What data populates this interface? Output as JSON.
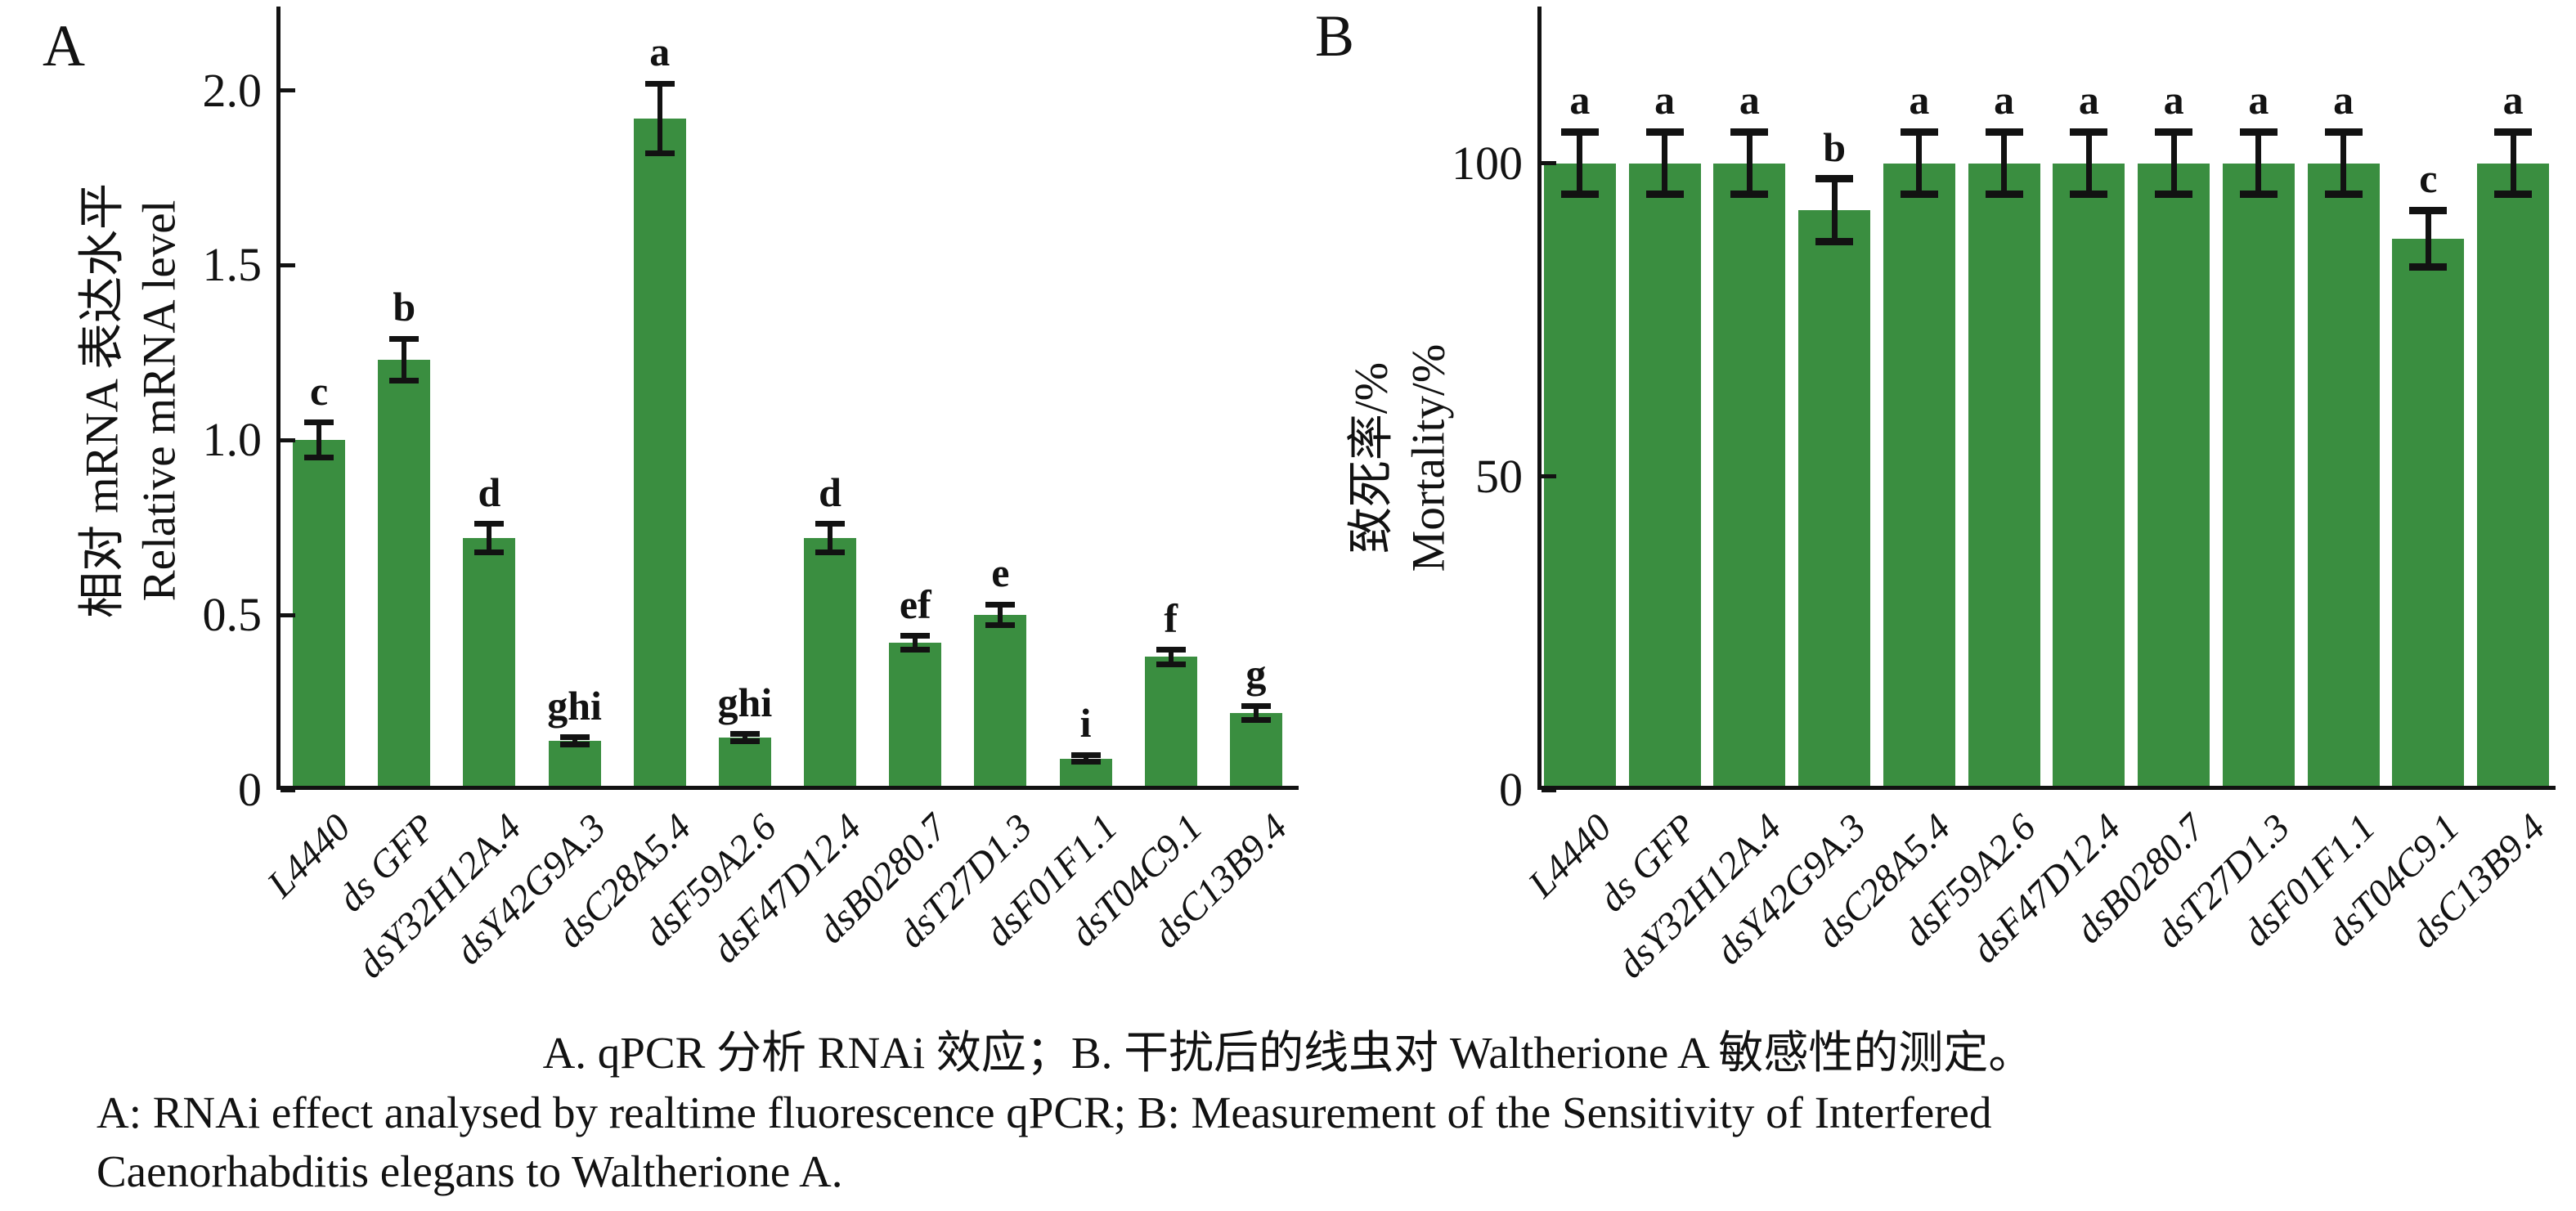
{
  "colors": {
    "bar": "#3a8e40",
    "ink": "#121212",
    "background": "#ffffff"
  },
  "caption": {
    "line1_zh": "A. qPCR 分析 RNAi 效应；B. 干扰后的线虫对 Waltherione A 敏感性的测定。",
    "line2_en": "A: RNAi effect analysed by realtime fluorescence qPCR; B: Measurement of the Sensitivity of Interfered",
    "line3_en": "Caenorhabditis elegans to Waltherione A."
  },
  "chart_data": [
    {
      "type": "bar",
      "panel_label": "A",
      "ylabel_zh": "相对 mRNA 表达水平",
      "ylabel_en": "Relative mRNA level",
      "xlabel": "",
      "categories": [
        "L4440",
        "ds GFP",
        "dsY32H12A.4",
        "dsY42G9A.3",
        "dsC28A5.4",
        "dsF59A2.6",
        "dsF47D12.4",
        "dsB0280.7",
        "dsT27D1.3",
        "dsF01F1.1",
        "dsT04C9.1",
        "dsC13B9.4"
      ],
      "values": [
        1.0,
        1.23,
        0.72,
        0.14,
        1.92,
        0.15,
        0.72,
        0.42,
        0.5,
        0.09,
        0.38,
        0.22
      ],
      "errors": [
        0.05,
        0.06,
        0.04,
        0.01,
        0.1,
        0.01,
        0.04,
        0.02,
        0.03,
        0.01,
        0.02,
        0.02
      ],
      "sig_letters": [
        "c",
        "b",
        "d",
        "ghi",
        "a",
        "ghi",
        "d",
        "ef",
        "e",
        "i",
        "f",
        "g"
      ],
      "ylim": [
        0,
        2.24
      ],
      "yticks": [
        {
          "v": 0,
          "label": "0"
        },
        {
          "v": 0.5,
          "label": "0.5"
        },
        {
          "v": 1.0,
          "label": "1.0"
        },
        {
          "v": 1.5,
          "label": "1.5"
        },
        {
          "v": 2.0,
          "label": "2.0"
        }
      ],
      "grid": false,
      "legend": "none",
      "bar_color": "#3a8e40"
    },
    {
      "type": "bar",
      "panel_label": "B",
      "ylabel_zh": "致死率/%",
      "ylabel_en": "Mortality/%",
      "xlabel": "",
      "categories": [
        "L4440",
        "ds GFP",
        "dsY32H12A.4",
        "dsY42G9A.3",
        "dsC28A5.4",
        "dsF59A2.6",
        "dsF47D12.4",
        "dsB0280.7",
        "dsT27D1.3",
        "dsF01F1.1",
        "dsT04C9.1",
        "dsC13B9.4"
      ],
      "values": [
        100,
        100,
        100,
        92.5,
        100,
        100,
        100,
        100,
        100,
        100,
        88,
        100
      ],
      "errors": [
        5,
        5,
        5,
        5,
        5,
        5,
        5,
        5,
        5,
        5,
        4.5,
        5
      ],
      "sig_letters": [
        "a",
        "a",
        "a",
        "b",
        "a",
        "a",
        "a",
        "a",
        "a",
        "a",
        "c",
        "a"
      ],
      "ylim": [
        0,
        125
      ],
      "yticks": [
        {
          "v": 0,
          "label": "0"
        },
        {
          "v": 50,
          "label": "50"
        },
        {
          "v": 100,
          "label": "100"
        }
      ],
      "grid": false,
      "legend": "none",
      "bar_color": "#3a8e40"
    }
  ]
}
